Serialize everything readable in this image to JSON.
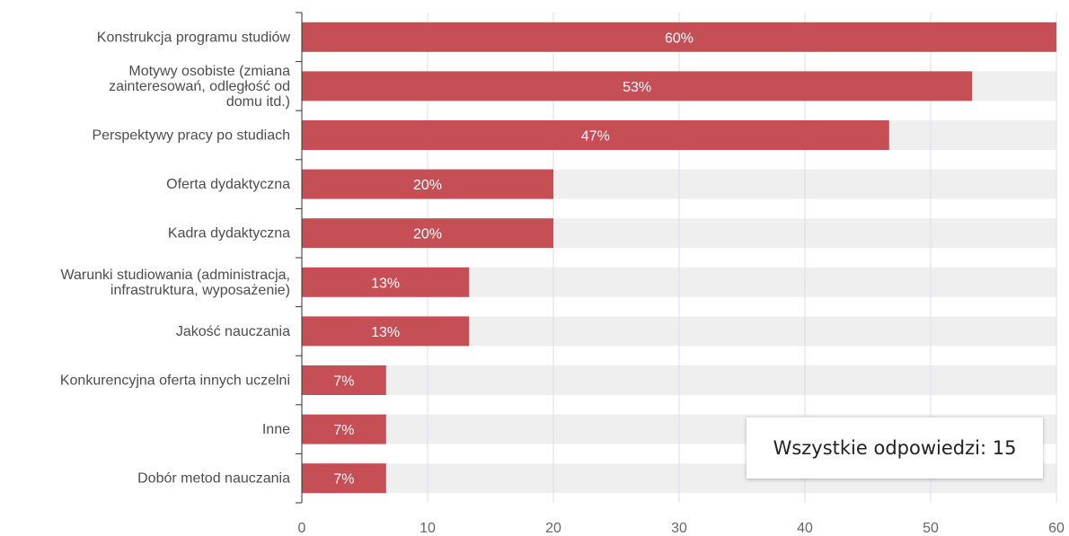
{
  "chart_data": {
    "type": "bar",
    "orientation": "horizontal",
    "categories": [
      "Konstrukcja programu studiów",
      "Motywy osobiste (zmiana zainteresowań, odległość od domu itd.)",
      "Perspektywy pracy po studiach",
      "Oferta dydaktyczna",
      "Kadra dydaktyczna",
      "Warunki studiowania (administracja, infrastruktura, wyposażenie)",
      "Jakość nauczania",
      "Konkurencyjna oferta innych uczelni",
      "Inne",
      "Dobór metod nauczania"
    ],
    "category_label_lines": [
      [
        "Konstrukcja programu studiów"
      ],
      [
        "Motywy osobiste (zmiana",
        "zainteresowań, odległość od",
        "domu itd.)"
      ],
      [
        "Perspektywy pracy po studiach"
      ],
      [
        "Oferta dydaktyczna"
      ],
      [
        "Kadra dydaktyczna"
      ],
      [
        "Warunki studiowania (administracja,",
        "infrastruktura, wyposażenie)"
      ],
      [
        "Jakość nauczania"
      ],
      [
        "Konkurencyjna oferta innych uczelni"
      ],
      [
        "Inne"
      ],
      [
        "Dobór metod nauczania"
      ]
    ],
    "values": [
      60,
      53.3,
      46.7,
      20,
      20,
      13.3,
      13.3,
      6.7,
      6.7,
      6.7
    ],
    "data_labels": [
      "60%",
      "53%",
      "47%",
      "20%",
      "20%",
      "13%",
      "13%",
      "7%",
      "7%",
      "7%"
    ],
    "xlim": [
      0,
      60
    ],
    "xticks": [
      0,
      10,
      20,
      30,
      40,
      50,
      60
    ],
    "grid": true,
    "bar_color": "#c64f55",
    "track_color": "#efefef",
    "gridline_color": "#dcdcf0"
  },
  "summary_box": {
    "text": "Wszystkie odpowiedzi: 15"
  }
}
